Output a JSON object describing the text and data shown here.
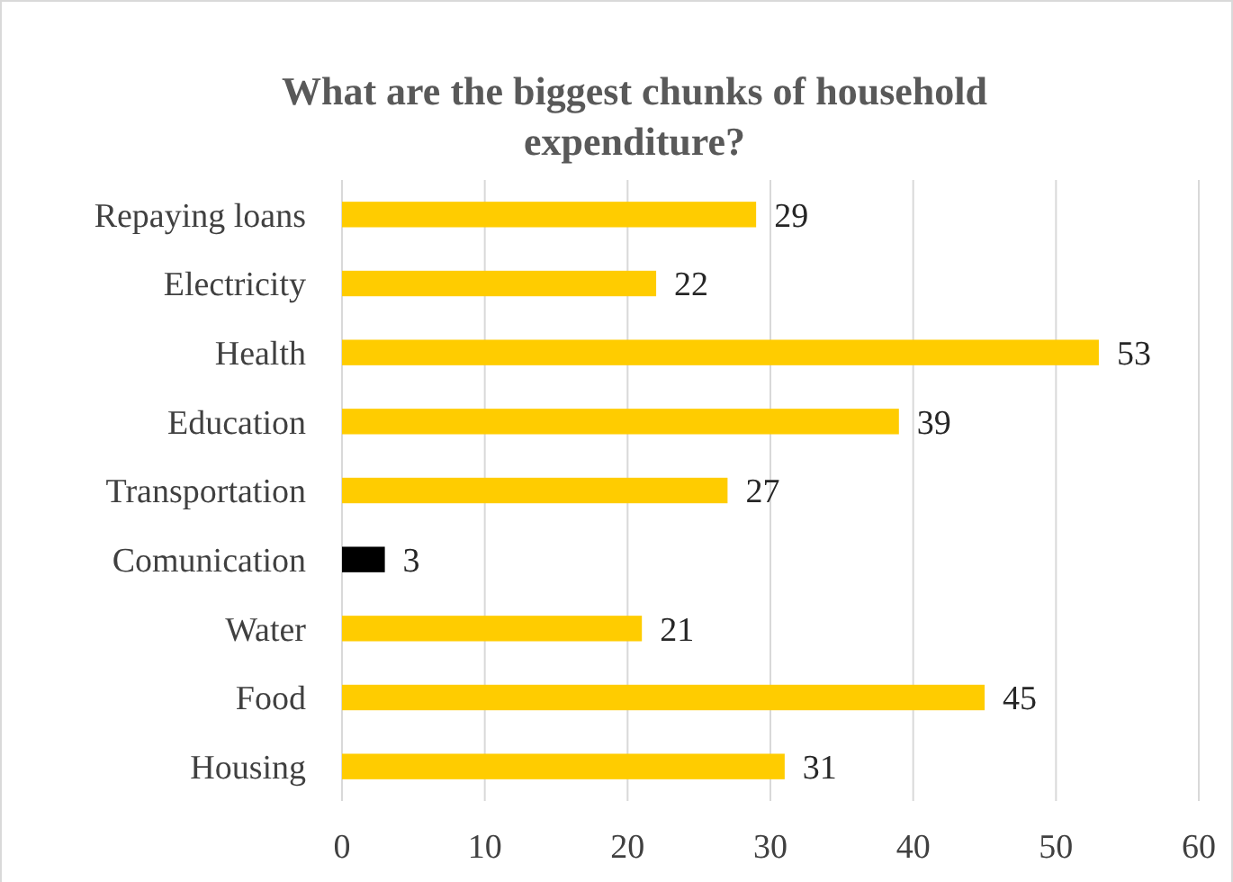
{
  "chart_data": {
    "type": "bar",
    "orientation": "horizontal",
    "title": "What are the biggest chunks of household expenditure?",
    "categories": [
      "Repaying loans",
      "Electricity",
      "Health",
      "Education",
      "Transportation",
      "Comunication",
      "Water",
      "Food",
      "Housing"
    ],
    "values": [
      29,
      22,
      53,
      39,
      27,
      3,
      21,
      45,
      31
    ],
    "colors": [
      "#ffcc00",
      "#ffcc00",
      "#ffcc00",
      "#ffcc00",
      "#ffcc00",
      "#000000",
      "#ffcc00",
      "#ffcc00",
      "#ffcc00"
    ],
    "xlim": [
      0,
      60
    ],
    "xticks": [
      0,
      10,
      20,
      30,
      40,
      50,
      60
    ],
    "grid": "x",
    "data_labels": true
  }
}
